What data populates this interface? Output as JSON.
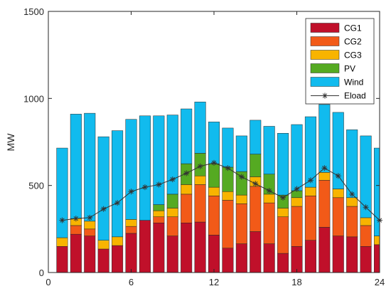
{
  "chart_data": {
    "type": "bar",
    "stacked": true,
    "title": "",
    "xlabel": "",
    "ylabel": "MW",
    "xlim": [
      0,
      24
    ],
    "ylim": [
      0,
      1500
    ],
    "xticks": [
      0,
      6,
      12,
      18,
      24
    ],
    "yticks": [
      0,
      500,
      1000,
      1500
    ],
    "grid": false,
    "legend_position": "top-right",
    "x": [
      1,
      2,
      3,
      4,
      5,
      6,
      7,
      8,
      9,
      10,
      11,
      12,
      13,
      14,
      15,
      16,
      17,
      18,
      19,
      20,
      21,
      22,
      23,
      24
    ],
    "series": [
      {
        "name": "CG1",
        "color": "#c0102a",
        "values": [
          150,
          220,
          210,
          135,
          155,
          225,
          300,
          285,
          210,
          285,
          290,
          215,
          140,
          165,
          235,
          165,
          110,
          150,
          185,
          260,
          210,
          205,
          150,
          160
        ]
      },
      {
        "name": "CG2",
        "color": "#f25a18",
        "values": [
          0,
          50,
          40,
          0,
          0,
          40,
          0,
          35,
          110,
          165,
          215,
          225,
          275,
          230,
          260,
          235,
          210,
          230,
          255,
          270,
          220,
          175,
          120,
          0
        ]
      },
      {
        "name": "CG3",
        "color": "#f8b400",
        "values": [
          50,
          40,
          45,
          50,
          50,
          40,
          0,
          35,
          50,
          55,
          50,
          50,
          50,
          50,
          55,
          50,
          50,
          50,
          50,
          45,
          50,
          50,
          45,
          50
        ]
      },
      {
        "name": "PV",
        "color": "#55aa22",
        "values": [
          0,
          0,
          0,
          0,
          0,
          0,
          0,
          35,
          80,
          120,
          130,
          135,
          140,
          135,
          130,
          115,
          75,
          40,
          0,
          0,
          0,
          0,
          0,
          0
        ]
      },
      {
        "name": "Wind",
        "color": "#11bbee",
        "values": [
          515,
          600,
          620,
          595,
          610,
          575,
          600,
          510,
          455,
          315,
          295,
          240,
          225,
          205,
          195,
          275,
          355,
          380,
          405,
          390,
          440,
          390,
          470,
          505
        ]
      }
    ],
    "line": {
      "name": "Eload",
      "color": "#333333",
      "marker": "*",
      "values": [
        300,
        310,
        315,
        365,
        400,
        465,
        490,
        505,
        535,
        570,
        610,
        630,
        600,
        550,
        510,
        470,
        430,
        480,
        530,
        600,
        555,
        450,
        375,
        300
      ]
    }
  }
}
